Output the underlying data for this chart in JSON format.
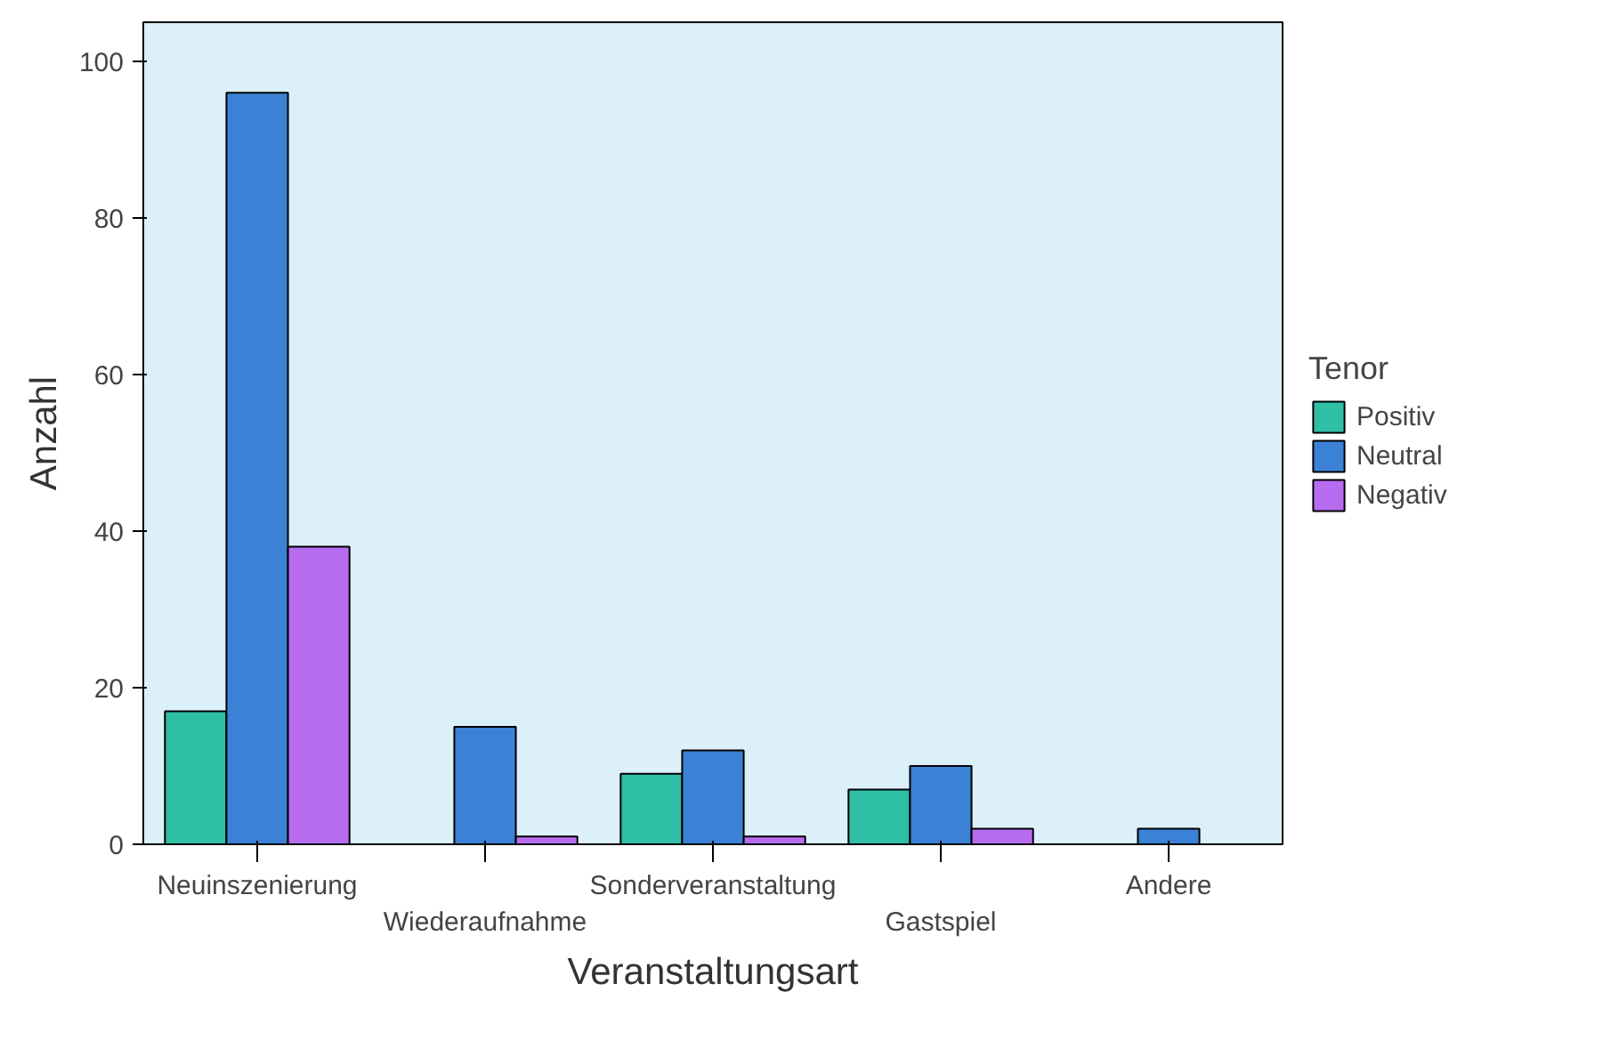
{
  "chart_data": {
    "type": "bar",
    "xlabel": "Veranstaltungsart",
    "ylabel": "Anzahl",
    "legend_title": "Tenor",
    "legend": "right",
    "grid": false,
    "categories": [
      "Neuinszenierung",
      "Wiederaufnahme",
      "Sonderveranstaltung",
      "Gastspiel",
      "Andere"
    ],
    "ylim": [
      0,
      105
    ],
    "yticks": [
      0,
      20,
      40,
      60,
      80,
      100
    ],
    "series": [
      {
        "name": "Positiv",
        "color": "#2ebfa5",
        "values": [
          17,
          null,
          9,
          7,
          null
        ]
      },
      {
        "name": "Neutral",
        "color": "#3b82d6",
        "values": [
          96,
          15,
          12,
          10,
          2
        ]
      },
      {
        "name": "Negativ",
        "color": "#b76cf0",
        "values": [
          38,
          1,
          1,
          2,
          null
        ]
      }
    ]
  }
}
